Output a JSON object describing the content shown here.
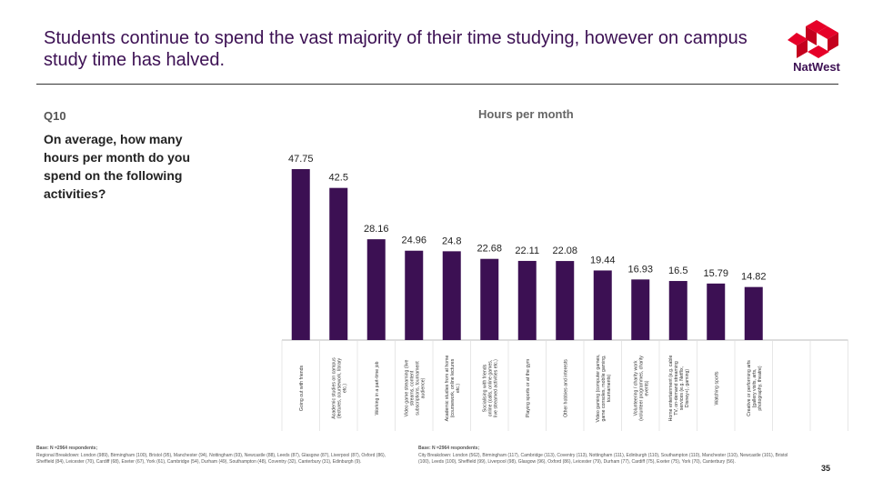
{
  "header": {
    "title": "Students continue to spend the vast majority of their time studying, however on campus study time has halved.",
    "logo_text": "NatWest",
    "brand_color": "#e60028"
  },
  "question": {
    "number": "Q10",
    "text": "On average, how many hours per month do you spend on the following activities?"
  },
  "chart_data": {
    "type": "bar",
    "title": "Hours per month",
    "bar_color": "#3c1053",
    "categories": [
      "Going out with friends",
      "Academic studies on campus (lectures, coursework, library etc.)",
      "Working in a part-time job",
      "Video game streaming (live streams, content subscriptions, tournament audience)",
      "Academic studies from at home (coursework, online lectures etc.)",
      "Socialising with friends online (calls, online games, live streamed activities etc.)",
      "Playing sports or at the gym",
      "Other hobbies and interests",
      "Video gaming (computer games, game consoles, mobile gaming, tournaments)",
      "Volunteering / charity work (volunteer programmes, charity events)",
      "Home entertainment (e.g. cable TV, on-demand streaming services (e.g. Netflix, Disney+), gaming)",
      "Watching sports",
      "Creative or performing arts (gallery visits, arts, photography, theatre)"
    ],
    "value_labels": [
      "47.75",
      "42.5",
      "28.16",
      "24.96",
      "24.8",
      "22.68",
      "22.11",
      "22.08",
      "19.44",
      "16.93",
      "16.5",
      "15.79",
      "14.82"
    ],
    "values": [
      47.75,
      42.5,
      28.16,
      24.96,
      24.8,
      22.68,
      22.11,
      22.08,
      19.44,
      16.93,
      16.5,
      15.79,
      14.82
    ],
    "ylim": [
      0,
      50
    ],
    "grid": false
  },
  "footer": {
    "left_base_title": "Base: N =2964 respondents;",
    "left_base_text": "Regional Breakdown: London (989), Birmingham (100), Bristol (95), Manchester (94), Nottingham (93), Newcastle (88), Leeds (87), Glasgow (87), Liverpool (87), Oxford (86), Sheffield (84), Leicester (70), Cardiff (68), Exeter (67), York (61), Cambridge (54), Durham (49), Southampton (48), Coventry (32), Canterbury (31), Edinburgh (9).",
    "right_base_title": "Base: N =2964 respondents;",
    "right_base_text": "City Breakdown: London (562), Birmingham (117), Cambridge (113), Coventry (113), Nottingham (111), Edinburgh (110), Southampton (110), Manchester (110), Newcastle (101), Bristol (100), Leeds (100), Sheffield (99), Liverpool (98), Glasgow (96), Oxford (86), Leicester (79), Durham (77), Cardiff (75), Exeter (75), York (70), Canterbury (56).",
    "page_number": "35"
  }
}
